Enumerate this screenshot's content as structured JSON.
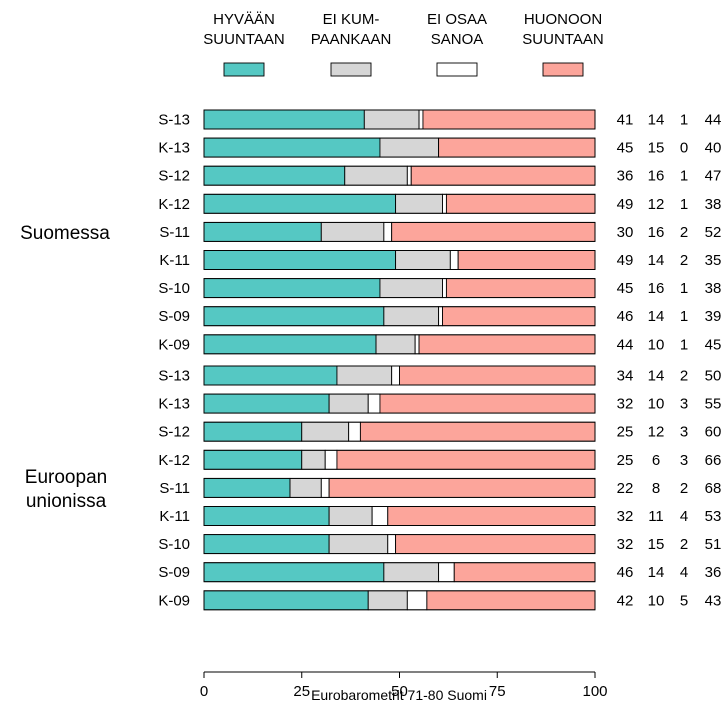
{
  "chart_data": {
    "type": "bar",
    "orientation": "horizontal",
    "stacked": true,
    "xlim": [
      0,
      100
    ],
    "xticks": [
      0,
      25,
      50,
      75,
      100
    ],
    "legend_position": "top",
    "grid": false,
    "source": "Eurobarometrit 71-80 Suomi",
    "series": [
      {
        "name_lines": [
          "HYVÄÄN",
          "SUUNTAAN"
        ],
        "color": "#55C8C3"
      },
      {
        "name_lines": [
          "EI KUM-",
          "PAANKAAN"
        ],
        "color": "#D6D6D6"
      },
      {
        "name_lines": [
          "EI OSAA",
          "SANOA"
        ],
        "color": "#FFFFFF"
      },
      {
        "name_lines": [
          "HUONOON",
          "SUUNTAAN"
        ],
        "color": "#FCA59B"
      }
    ],
    "groups": [
      {
        "label_lines": [
          "Suomessa"
        ],
        "rows": [
          {
            "label": "S-13",
            "values": [
              41,
              14,
              1,
              44
            ]
          },
          {
            "label": "K-13",
            "values": [
              45,
              15,
              0,
              40
            ]
          },
          {
            "label": "S-12",
            "values": [
              36,
              16,
              1,
              47
            ]
          },
          {
            "label": "K-12",
            "values": [
              49,
              12,
              1,
              38
            ]
          },
          {
            "label": "S-11",
            "values": [
              30,
              16,
              2,
              52
            ]
          },
          {
            "label": "K-11",
            "values": [
              49,
              14,
              2,
              35
            ]
          },
          {
            "label": "S-10",
            "values": [
              45,
              16,
              1,
              38
            ]
          },
          {
            "label": "S-09",
            "values": [
              46,
              14,
              1,
              39
            ]
          },
          {
            "label": "K-09",
            "values": [
              44,
              10,
              1,
              45
            ]
          }
        ]
      },
      {
        "label_lines": [
          "Euroopan",
          "unionissa"
        ],
        "rows": [
          {
            "label": "S-13",
            "values": [
              34,
              14,
              2,
              50
            ]
          },
          {
            "label": "K-13",
            "values": [
              32,
              10,
              3,
              55
            ]
          },
          {
            "label": "S-12",
            "values": [
              25,
              12,
              3,
              60
            ]
          },
          {
            "label": "K-12",
            "values": [
              25,
              6,
              3,
              66
            ]
          },
          {
            "label": "S-11",
            "values": [
              22,
              8,
              2,
              68
            ]
          },
          {
            "label": "K-11",
            "values": [
              32,
              11,
              4,
              53
            ]
          },
          {
            "label": "S-10",
            "values": [
              32,
              15,
              2,
              51
            ]
          },
          {
            "label": "S-09",
            "values": [
              46,
              14,
              4,
              36
            ]
          },
          {
            "label": "K-09",
            "values": [
              42,
              10,
              5,
              43
            ]
          }
        ]
      }
    ]
  }
}
